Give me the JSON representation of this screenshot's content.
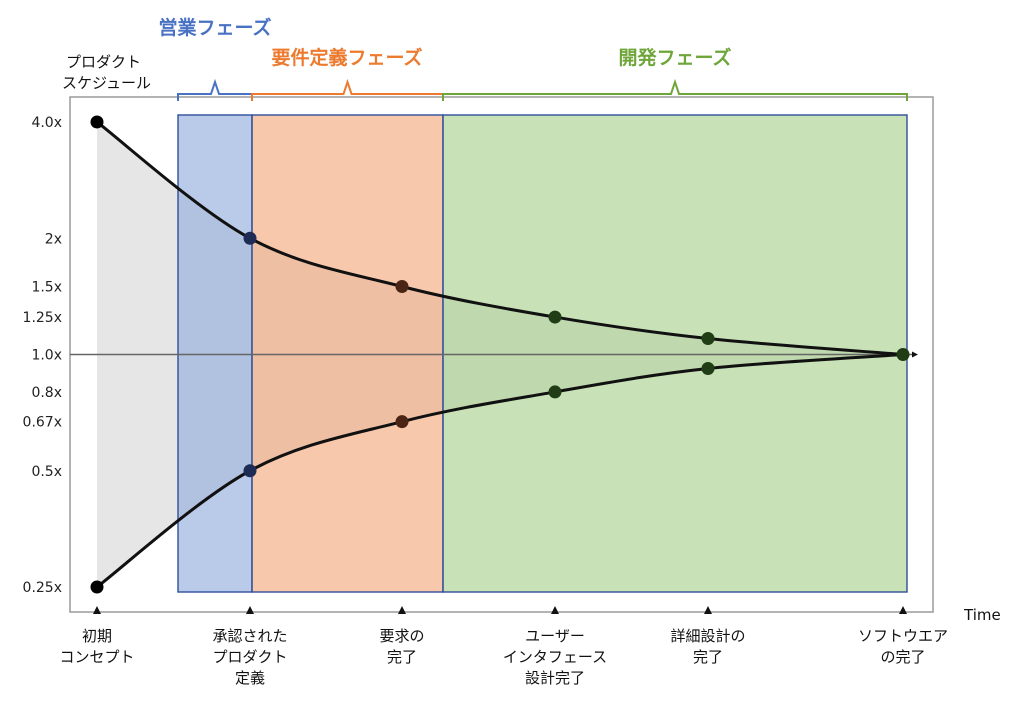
{
  "chart_data": {
    "type": "line",
    "title": "プロダクト\nスケジュール",
    "xlabel": "Time",
    "ylabel": "",
    "y_scale": "log",
    "y_ticks": [
      {
        "label": "4.0x",
        "value": 4.0
      },
      {
        "label": "2x",
        "value": 2.0
      },
      {
        "label": "1.5x",
        "value": 1.5
      },
      {
        "label": "1.25x",
        "value": 1.25
      },
      {
        "label": "1.0x",
        "value": 1.0
      },
      {
        "label": "0.8x",
        "value": 0.8
      },
      {
        "label": "0.67x",
        "value": 0.67
      },
      {
        "label": "0.5x",
        "value": 0.5
      },
      {
        "label": "0.25x",
        "value": 0.25
      }
    ],
    "milestones": [
      "初期\nコンセプト",
      "承認された\nプロダクト\n定義",
      "要求の\n完了",
      "ユーザー\nインタフェース\n設計完了",
      "詳細設計の\n完了",
      "ソフトウエア\nの完了"
    ],
    "series": [
      {
        "values": [
          4.0,
          2.0,
          1.5,
          1.25,
          1.1,
          1.0
        ]
      },
      {
        "values": [
          0.25,
          0.5,
          0.67,
          0.8,
          0.92,
          1.0
        ]
      }
    ],
    "phases": [
      {
        "name": "営業フェーズ",
        "from": "初期\nコンセプト",
        "to": "承認された\nプロダクト\n定義",
        "color": "#4a72c4",
        "fill": "#8fa9dc",
        "fill_opacity": 0.62
      },
      {
        "name": "要件定義フェーズ",
        "from": "承認された\nプロダクト\n定義",
        "to": "要求の\n完了",
        "color": "#ec7a2f",
        "fill": "#f4a67a",
        "fill_opacity": 0.62
      },
      {
        "name": "開発フェーズ",
        "from": "要求の\n完了",
        "to": "ソフトウエア\nの完了",
        "color": "#6ea63a",
        "fill": "#a7cf8a",
        "fill_opacity": 0.62
      }
    ],
    "cone_fill": "#e6e6e6",
    "line_color": "#111111",
    "reference_line": 1.0,
    "grid": false
  }
}
